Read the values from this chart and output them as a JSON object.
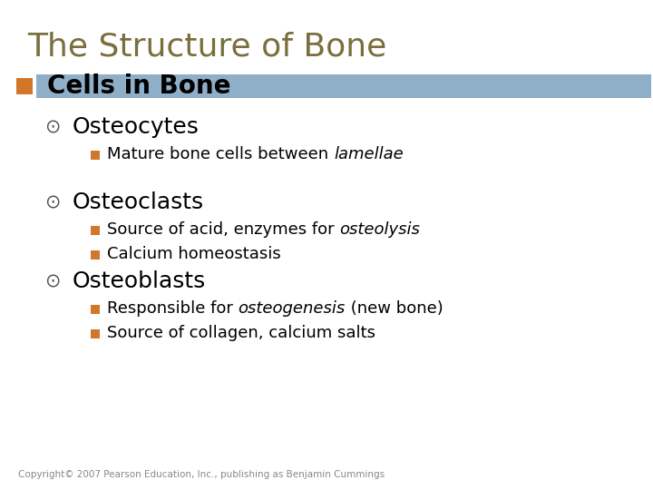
{
  "title": "The Structure of Bone",
  "title_color": "#7a6e3c",
  "title_fontsize": 26,
  "background_color": "#ffffff",
  "highlight_bar_color": "#8fafc8",
  "orange_color": "#d2772a",
  "level1_text": "Cells in Bone",
  "level1_fontsize": 20,
  "level2_fontsize": 18,
  "level3_fontsize": 13,
  "level2_items": [
    {
      "text": "Osteocytes",
      "children": [
        {
          "normal": "Mature bone cells between ",
          "italic": "lamellae",
          "after": ""
        }
      ]
    },
    {
      "text": "Osteoclasts",
      "children": [
        {
          "normal": "Source of acid, enzymes for ",
          "italic": "osteolysis",
          "after": ""
        },
        {
          "normal": "Calcium homeostasis",
          "italic": "",
          "after": ""
        }
      ]
    },
    {
      "text": "Osteoblasts",
      "children": [
        {
          "normal": "Responsible for ",
          "italic": "osteogenesis",
          "after": " (new bone)"
        },
        {
          "normal": "Source of collagen, calcium salts",
          "italic": "",
          "after": ""
        }
      ]
    }
  ],
  "copyright": "Copyright© 2007 Pearson Education, Inc., publishing as Benjamin Cummings",
  "copyright_fontsize": 7.5,
  "copyright_color": "#888888"
}
